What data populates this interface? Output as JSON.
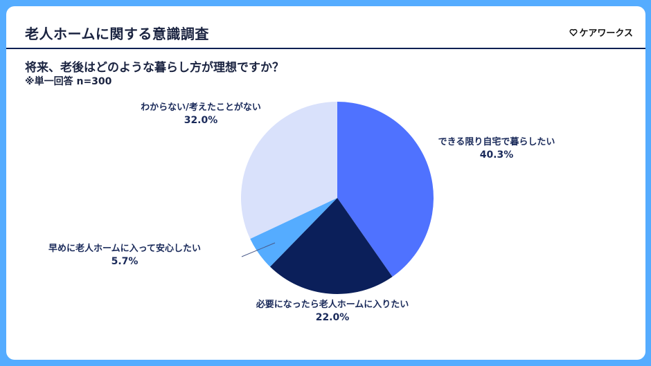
{
  "header": {
    "title": "老人ホームに関する意識調査",
    "brand": "ケアワークス",
    "brand_icon": "heart-outline-icon"
  },
  "question": {
    "text": "将来、老後はどのような暮らし方が理想ですか？",
    "note": "※単一回答 n=300"
  },
  "colors": {
    "background": "#55acff",
    "header_rule": "#0b1f52",
    "text": "#1a2a5a"
  },
  "chart_data": {
    "type": "pie",
    "title": "将来、老後はどのような暮らし方が理想ですか？",
    "subtitle": "※単一回答 n=300",
    "start_angle": "12 o'clock, clockwise",
    "categories": [
      "できる限り自宅で暮らしたい",
      "必要になったら老人ホームに入りたい",
      "早めに老人ホームに入って安心したい",
      "わからない/考えたことがない"
    ],
    "values": [
      40.3,
      22.0,
      5.7,
      32.0
    ],
    "unit": "%",
    "colors": [
      "#4f72ff",
      "#0b1f5a",
      "#55acff",
      "#d9e1fb"
    ],
    "labels": [
      {
        "name": "できる限り自宅で暮らしたい",
        "pct": "40.3%"
      },
      {
        "name": "必要になったら老人ホームに入りたい",
        "pct": "22.0%"
      },
      {
        "name": "早めに老人ホームに入って安心したい",
        "pct": "5.7%"
      },
      {
        "name": "わからない/考えたことがない",
        "pct": "32.0%"
      }
    ],
    "legend": "none (direct labels)"
  }
}
